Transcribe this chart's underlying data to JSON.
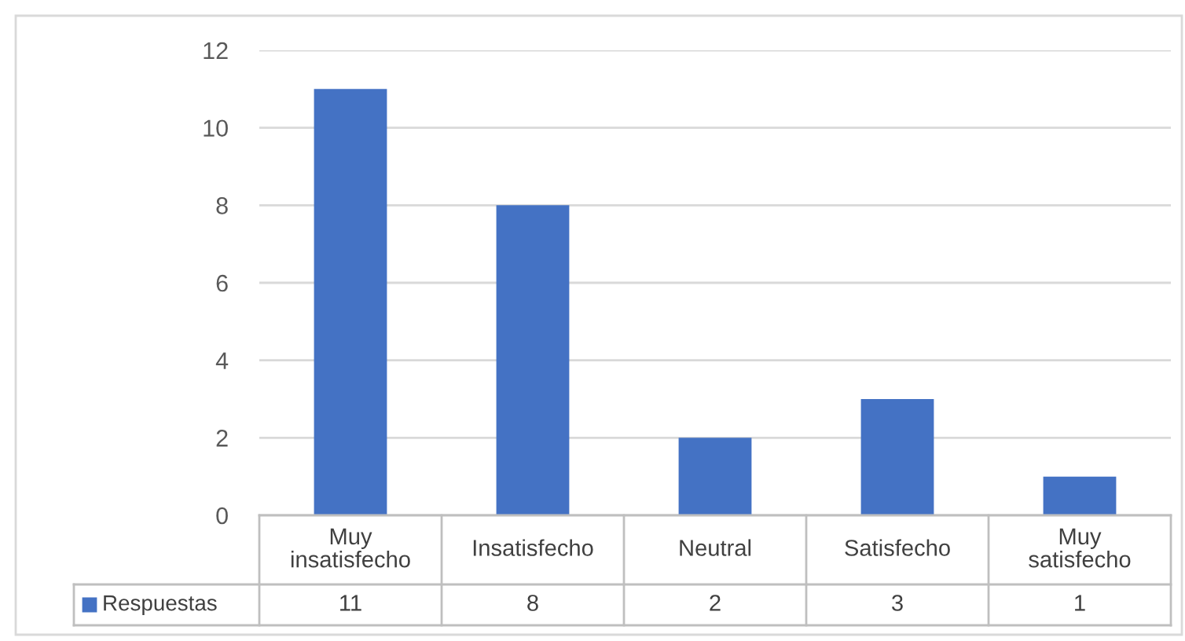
{
  "chart_data": {
    "type": "bar",
    "categories": [
      "Muy insatisfecho",
      "Insatisfecho",
      "Neutral",
      "Satisfecho",
      "Muy satisfecho"
    ],
    "series": [
      {
        "name": "Respuestas",
        "color": "#4472c4",
        "values": [
          11,
          8,
          2,
          3,
          1
        ]
      }
    ],
    "ylim": [
      0,
      12
    ],
    "yticks": [
      0,
      2,
      4,
      6,
      8,
      10,
      12
    ],
    "grid": "y",
    "data_labels": true,
    "legend": "bottom"
  }
}
